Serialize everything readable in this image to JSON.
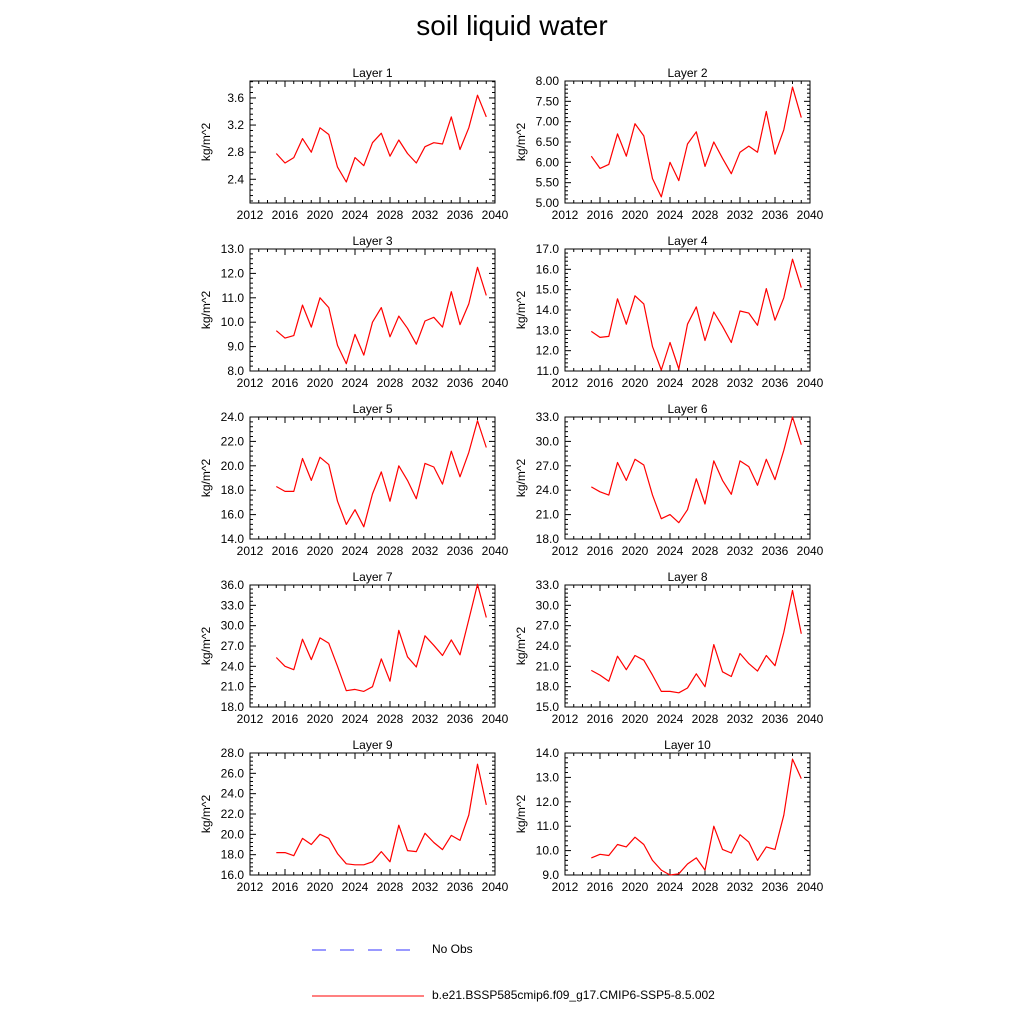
{
  "title": "soil liquid water",
  "legend": {
    "entries": [
      {
        "label": "No Obs",
        "color": "#3333ff",
        "style": "dashed"
      },
      {
        "label": "b.e21.BSSP585cmip6.f09_g17.CMIP6-SSP5-8.5.002",
        "color": "#ff0000",
        "style": "solid"
      }
    ]
  },
  "chart_data": [
    {
      "type": "line",
      "title": "Layer 1",
      "ylabel": "kg/m^2",
      "xlim": [
        2012,
        2040
      ],
      "ylim": [
        2.05,
        3.85
      ],
      "xticks": [
        "2012",
        "2016",
        "2020",
        "2024",
        "2028",
        "2032",
        "2036",
        "2040"
      ],
      "yticks": [
        "2.4",
        "2.8",
        "3.2",
        "3.6"
      ],
      "x": [
        2015,
        2016,
        2017,
        2018,
        2019,
        2020,
        2021,
        2022,
        2023,
        2024,
        2025,
        2026,
        2027,
        2028,
        2029,
        2030,
        2031,
        2032,
        2033,
        2034,
        2035,
        2036,
        2037,
        2038,
        2039
      ],
      "series": [
        {
          "values": [
            2.78,
            2.64,
            2.72,
            3.0,
            2.8,
            3.16,
            3.06,
            2.58,
            2.36,
            2.72,
            2.6,
            2.94,
            3.08,
            2.74,
            2.98,
            2.78,
            2.64,
            2.88,
            2.94,
            2.92,
            3.32,
            2.84,
            3.16,
            3.64,
            3.32
          ]
        }
      ]
    },
    {
      "type": "line",
      "title": "Layer 2",
      "ylabel": "kg/m^2",
      "xlim": [
        2012,
        2040
      ],
      "ylim": [
        5.0,
        8.0
      ],
      "xticks": [
        "2012",
        "2016",
        "2020",
        "2024",
        "2028",
        "2032",
        "2036",
        "2040"
      ],
      "yticks": [
        "5.00",
        "5.50",
        "6.00",
        "6.50",
        "7.00",
        "7.50",
        "8.00"
      ],
      "x": [
        2015,
        2016,
        2017,
        2018,
        2019,
        2020,
        2021,
        2022,
        2023,
        2024,
        2025,
        2026,
        2027,
        2028,
        2029,
        2030,
        2031,
        2032,
        2033,
        2034,
        2035,
        2036,
        2037,
        2038,
        2039
      ],
      "series": [
        {
          "values": [
            6.15,
            5.85,
            5.95,
            6.7,
            6.15,
            6.95,
            6.65,
            5.6,
            5.15,
            6.0,
            5.55,
            6.45,
            6.75,
            5.9,
            6.5,
            6.1,
            5.72,
            6.25,
            6.4,
            6.25,
            7.25,
            6.2,
            6.8,
            7.85,
            7.1
          ]
        }
      ]
    },
    {
      "type": "line",
      "title": "Layer 3",
      "ylabel": "kg/m^2",
      "xlim": [
        2012,
        2040
      ],
      "ylim": [
        8.0,
        13.0
      ],
      "xticks": [
        "2012",
        "2016",
        "2020",
        "2024",
        "2028",
        "2032",
        "2036",
        "2040"
      ],
      "yticks": [
        "8.0",
        "9.0",
        "10.0",
        "11.0",
        "12.0",
        "13.0"
      ],
      "x": [
        2015,
        2016,
        2017,
        2018,
        2019,
        2020,
        2021,
        2022,
        2023,
        2024,
        2025,
        2026,
        2027,
        2028,
        2029,
        2030,
        2031,
        2032,
        2033,
        2034,
        2035,
        2036,
        2037,
        2038,
        2039
      ],
      "series": [
        {
          "values": [
            9.65,
            9.35,
            9.45,
            10.7,
            9.8,
            11.0,
            10.6,
            9.05,
            8.3,
            9.5,
            8.65,
            10.0,
            10.6,
            9.4,
            10.25,
            9.75,
            9.1,
            10.05,
            10.2,
            9.8,
            11.25,
            9.9,
            10.75,
            12.25,
            11.1
          ]
        }
      ]
    },
    {
      "type": "line",
      "title": "Layer 4",
      "ylabel": "kg/m^2",
      "xlim": [
        2012,
        2040
      ],
      "ylim": [
        11.0,
        17.0
      ],
      "xticks": [
        "2012",
        "2016",
        "2020",
        "2024",
        "2028",
        "2032",
        "2036",
        "2040"
      ],
      "yticks": [
        "11.0",
        "12.0",
        "13.0",
        "14.0",
        "15.0",
        "16.0",
        "17.0"
      ],
      "x": [
        2015,
        2016,
        2017,
        2018,
        2019,
        2020,
        2021,
        2022,
        2023,
        2024,
        2025,
        2026,
        2027,
        2028,
        2029,
        2030,
        2031,
        2032,
        2033,
        2034,
        2035,
        2036,
        2037,
        2038,
        2039
      ],
      "series": [
        {
          "values": [
            12.95,
            12.65,
            12.7,
            14.55,
            13.3,
            14.7,
            14.3,
            12.2,
            11.05,
            12.4,
            11.1,
            13.3,
            14.15,
            12.5,
            13.9,
            13.2,
            12.4,
            13.95,
            13.85,
            13.25,
            15.05,
            13.5,
            14.6,
            16.5,
            15.1
          ]
        }
      ]
    },
    {
      "type": "line",
      "title": "Layer 5",
      "ylabel": "kg/m^2",
      "xlim": [
        2012,
        2040
      ],
      "ylim": [
        14.0,
        24.0
      ],
      "xticks": [
        "2012",
        "2016",
        "2020",
        "2024",
        "2028",
        "2032",
        "2036",
        "2040"
      ],
      "yticks": [
        "14.0",
        "16.0",
        "18.0",
        "20.0",
        "22.0",
        "24.0"
      ],
      "x": [
        2015,
        2016,
        2017,
        2018,
        2019,
        2020,
        2021,
        2022,
        2023,
        2024,
        2025,
        2026,
        2027,
        2028,
        2029,
        2030,
        2031,
        2032,
        2033,
        2034,
        2035,
        2036,
        2037,
        2038,
        2039
      ],
      "series": [
        {
          "values": [
            18.3,
            17.9,
            17.9,
            20.6,
            18.8,
            20.7,
            20.1,
            17.1,
            15.2,
            16.4,
            15.0,
            17.7,
            19.5,
            17.1,
            20.0,
            18.8,
            17.3,
            20.2,
            19.9,
            18.5,
            21.2,
            19.1,
            21.1,
            23.7,
            21.5
          ]
        }
      ]
    },
    {
      "type": "line",
      "title": "Layer 6",
      "ylabel": "kg/m^2",
      "xlim": [
        2012,
        2040
      ],
      "ylim": [
        18.0,
        33.0
      ],
      "xticks": [
        "2012",
        "2016",
        "2020",
        "2024",
        "2028",
        "2032",
        "2036",
        "2040"
      ],
      "yticks": [
        "18.0",
        "21.0",
        "24.0",
        "27.0",
        "30.0",
        "33.0"
      ],
      "x": [
        2015,
        2016,
        2017,
        2018,
        2019,
        2020,
        2021,
        2022,
        2023,
        2024,
        2025,
        2026,
        2027,
        2028,
        2029,
        2030,
        2031,
        2032,
        2033,
        2034,
        2035,
        2036,
        2037,
        2038,
        2039
      ],
      "series": [
        {
          "values": [
            24.4,
            23.8,
            23.4,
            27.4,
            25.2,
            27.8,
            27.1,
            23.4,
            20.5,
            21.0,
            20.0,
            21.6,
            25.4,
            22.3,
            27.6,
            25.2,
            23.5,
            27.6,
            26.9,
            24.6,
            27.8,
            25.3,
            28.9,
            33.0,
            29.6
          ]
        }
      ]
    },
    {
      "type": "line",
      "title": "Layer 7",
      "ylabel": "kg/m^2",
      "xlim": [
        2012,
        2040
      ],
      "ylim": [
        18.0,
        36.0
      ],
      "xticks": [
        "2012",
        "2016",
        "2020",
        "2024",
        "2028",
        "2032",
        "2036",
        "2040"
      ],
      "yticks": [
        "18.0",
        "21.0",
        "24.0",
        "27.0",
        "30.0",
        "33.0",
        "36.0"
      ],
      "x": [
        2015,
        2016,
        2017,
        2018,
        2019,
        2020,
        2021,
        2022,
        2023,
        2024,
        2025,
        2026,
        2027,
        2028,
        2029,
        2030,
        2031,
        2032,
        2033,
        2034,
        2035,
        2036,
        2037,
        2038,
        2039
      ],
      "series": [
        {
          "values": [
            25.3,
            24.0,
            23.5,
            28.0,
            25.0,
            28.2,
            27.4,
            24.0,
            20.4,
            20.6,
            20.3,
            21.0,
            25.1,
            21.8,
            29.3,
            25.4,
            23.9,
            28.5,
            27.1,
            25.6,
            27.9,
            25.7,
            30.9,
            36.1,
            31.2
          ]
        }
      ]
    },
    {
      "type": "line",
      "title": "Layer 8",
      "ylabel": "kg/m^2",
      "xlim": [
        2012,
        2040
      ],
      "ylim": [
        15.0,
        33.0
      ],
      "xticks": [
        "2012",
        "2016",
        "2020",
        "2024",
        "2028",
        "2032",
        "2036",
        "2040"
      ],
      "yticks": [
        "15.0",
        "18.0",
        "21.0",
        "24.0",
        "27.0",
        "30.0",
        "33.0"
      ],
      "x": [
        2015,
        2016,
        2017,
        2018,
        2019,
        2020,
        2021,
        2022,
        2023,
        2024,
        2025,
        2026,
        2027,
        2028,
        2029,
        2030,
        2031,
        2032,
        2033,
        2034,
        2035,
        2036,
        2037,
        2038,
        2039
      ],
      "series": [
        {
          "values": [
            20.4,
            19.7,
            18.8,
            22.5,
            20.5,
            22.6,
            21.9,
            19.7,
            17.3,
            17.3,
            17.1,
            17.8,
            19.9,
            18.0,
            24.2,
            20.2,
            19.5,
            22.9,
            21.4,
            20.3,
            22.6,
            21.1,
            26.0,
            32.2,
            25.8
          ]
        }
      ]
    },
    {
      "type": "line",
      "title": "Layer 9",
      "ylabel": "kg/m^2",
      "xlim": [
        2012,
        2040
      ],
      "ylim": [
        16.0,
        28.0
      ],
      "xticks": [
        "2012",
        "2016",
        "2020",
        "2024",
        "2028",
        "2032",
        "2036",
        "2040"
      ],
      "yticks": [
        "16.0",
        "18.0",
        "20.0",
        "22.0",
        "24.0",
        "26.0",
        "28.0"
      ],
      "x": [
        2015,
        2016,
        2017,
        2018,
        2019,
        2020,
        2021,
        2022,
        2023,
        2024,
        2025,
        2026,
        2027,
        2028,
        2029,
        2030,
        2031,
        2032,
        2033,
        2034,
        2035,
        2036,
        2037,
        2038,
        2039
      ],
      "series": [
        {
          "values": [
            18.2,
            18.2,
            17.9,
            19.6,
            19.0,
            20.0,
            19.6,
            18.1,
            17.1,
            17.0,
            17.0,
            17.3,
            18.3,
            17.3,
            20.9,
            18.4,
            18.3,
            20.1,
            19.2,
            18.5,
            19.9,
            19.4,
            21.9,
            26.9,
            22.9
          ]
        }
      ]
    },
    {
      "type": "line",
      "title": "Layer 10",
      "ylabel": "kg/m^2",
      "xlim": [
        2012,
        2040
      ],
      "ylim": [
        9.0,
        14.0
      ],
      "xticks": [
        "2012",
        "2016",
        "2020",
        "2024",
        "2028",
        "2032",
        "2036",
        "2040"
      ],
      "yticks": [
        "9.0",
        "10.0",
        "11.0",
        "12.0",
        "13.0",
        "14.0"
      ],
      "x": [
        2015,
        2016,
        2017,
        2018,
        2019,
        2020,
        2021,
        2022,
        2023,
        2024,
        2025,
        2026,
        2027,
        2028,
        2029,
        2030,
        2031,
        2032,
        2033,
        2034,
        2035,
        2036,
        2037,
        2038,
        2039
      ],
      "series": [
        {
          "values": [
            9.7,
            9.85,
            9.8,
            10.25,
            10.15,
            10.55,
            10.25,
            9.6,
            9.2,
            9.0,
            9.05,
            9.45,
            9.7,
            9.2,
            11.0,
            10.05,
            9.9,
            10.65,
            10.35,
            9.6,
            10.15,
            10.05,
            11.45,
            13.75,
            12.95
          ]
        }
      ]
    }
  ]
}
